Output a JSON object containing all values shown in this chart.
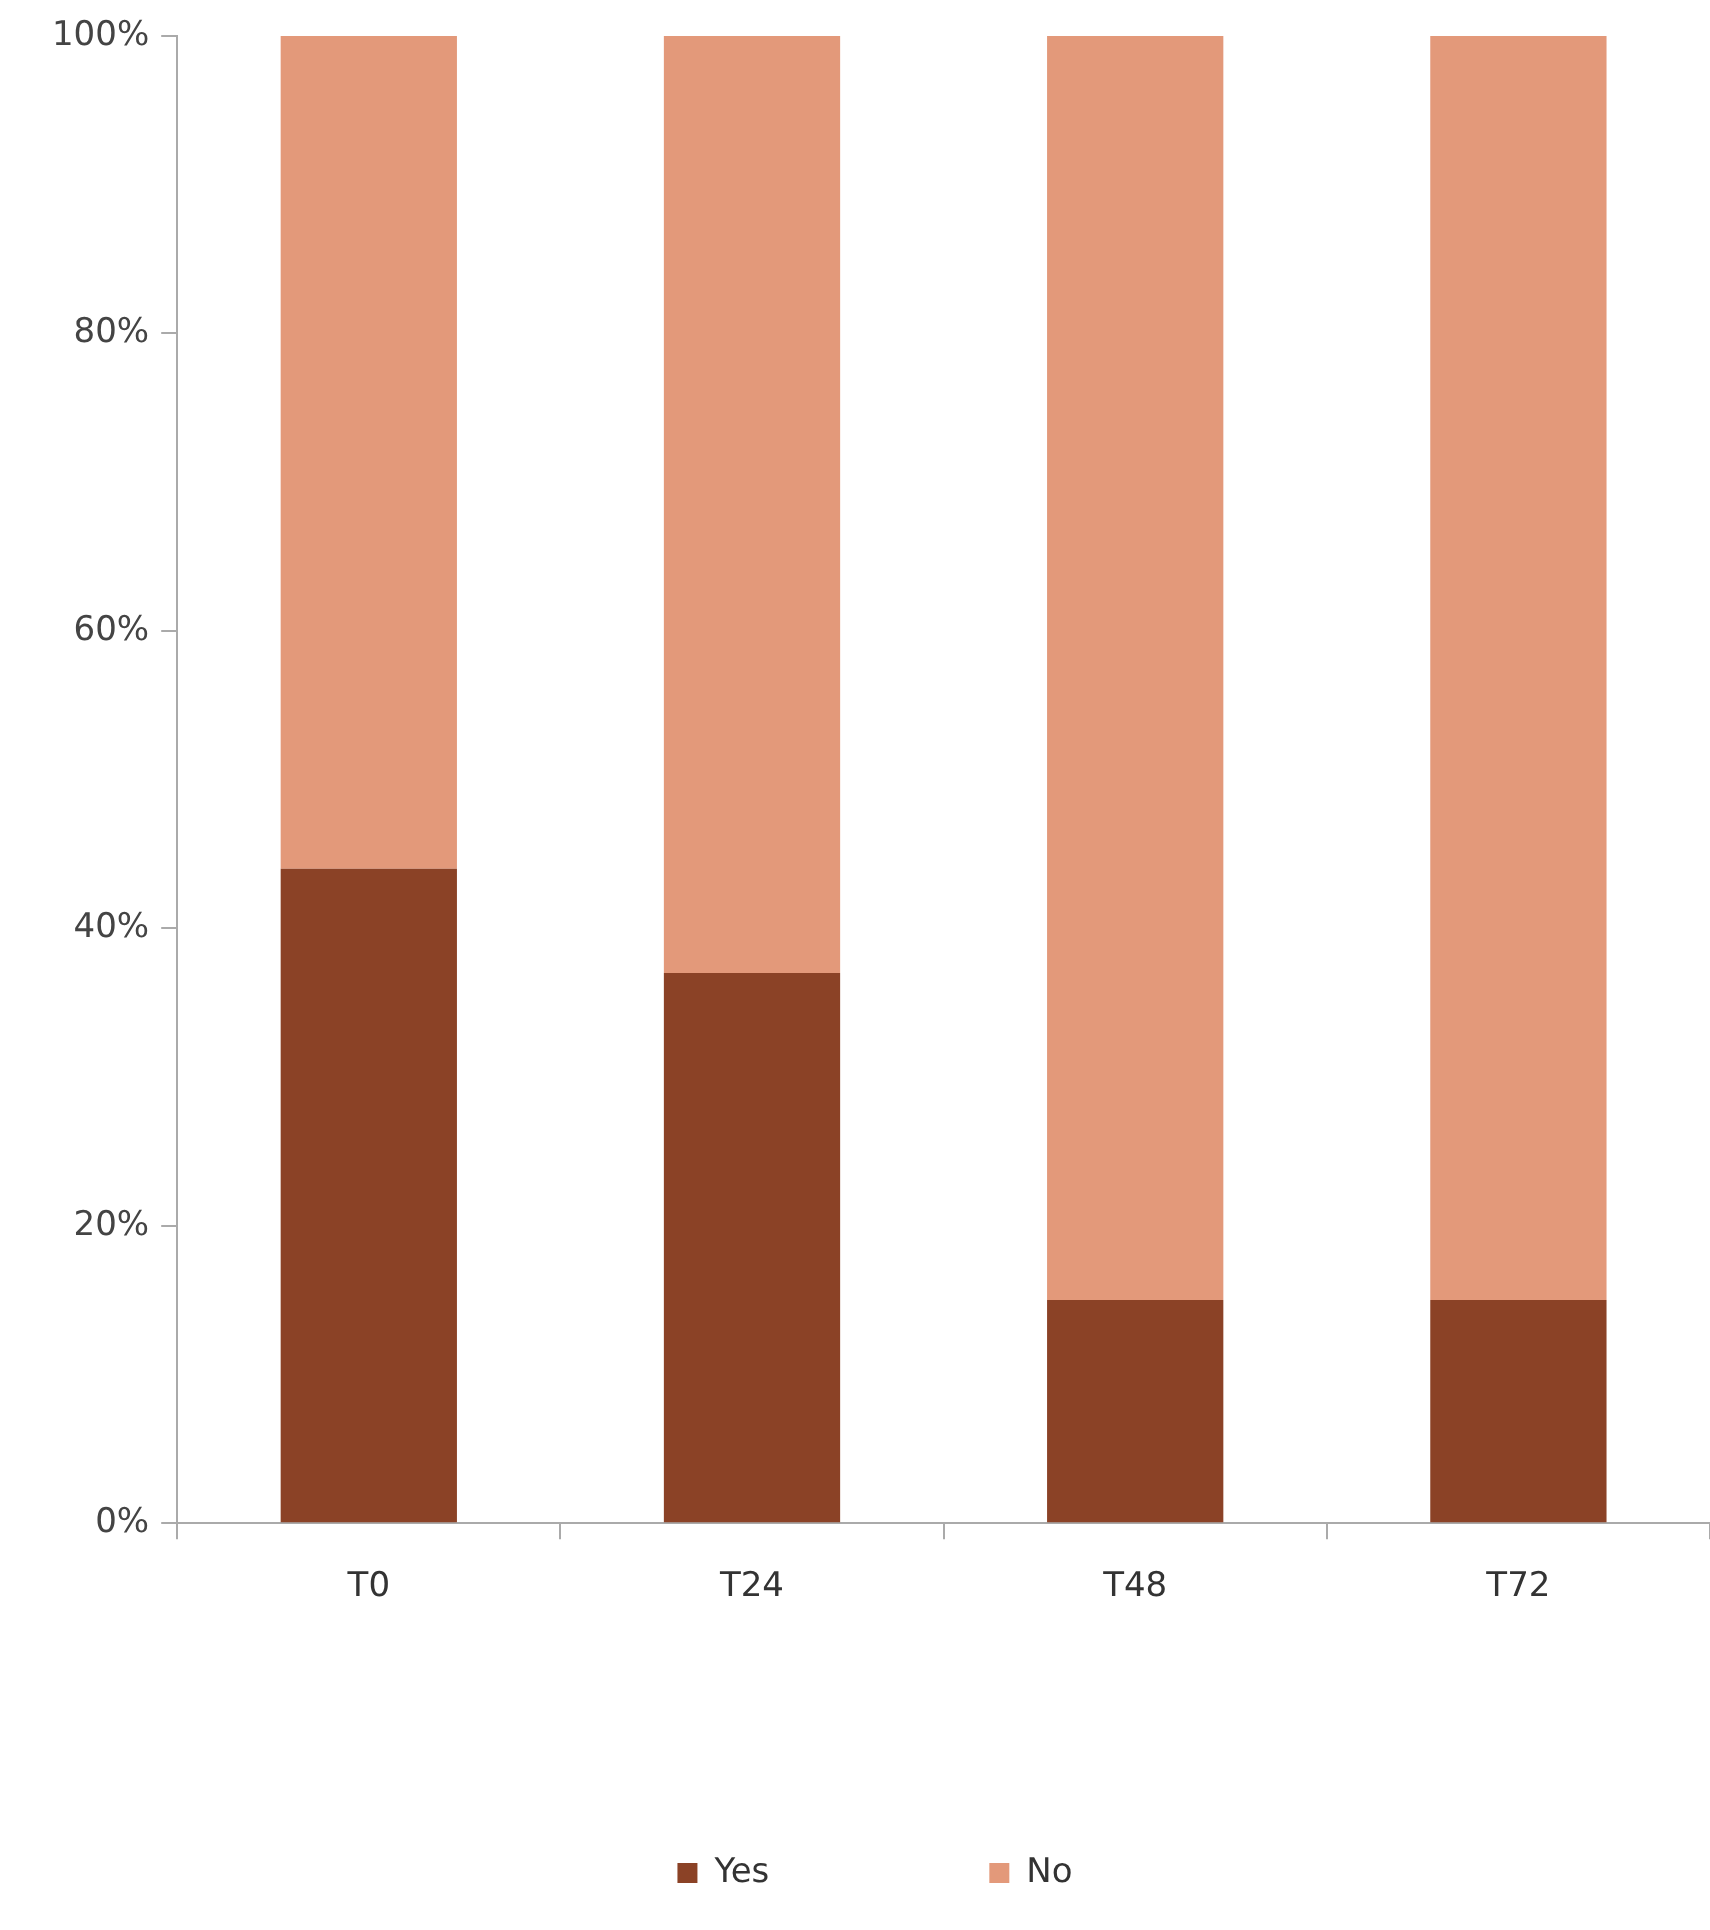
{
  "chart_data": {
    "type": "bar",
    "stacked": true,
    "categories": [
      "T0",
      "T24",
      "T48",
      "T72"
    ],
    "series": [
      {
        "name": "Yes",
        "color": "#8b4226",
        "values": [
          44,
          37,
          15,
          15
        ]
      },
      {
        "name": "No",
        "color": "#e3997a",
        "values": [
          56,
          63,
          85,
          85
        ]
      }
    ],
    "ylim": [
      0,
      100
    ],
    "yticks": [
      {
        "value": 0,
        "label": "0%"
      },
      {
        "value": 20,
        "label": "20%"
      },
      {
        "value": 40,
        "label": "40%"
      },
      {
        "value": 60,
        "label": "60%"
      },
      {
        "value": 80,
        "label": "80%"
      },
      {
        "value": 100,
        "label": "100%"
      }
    ],
    "grid": false,
    "legend": "bottom"
  }
}
